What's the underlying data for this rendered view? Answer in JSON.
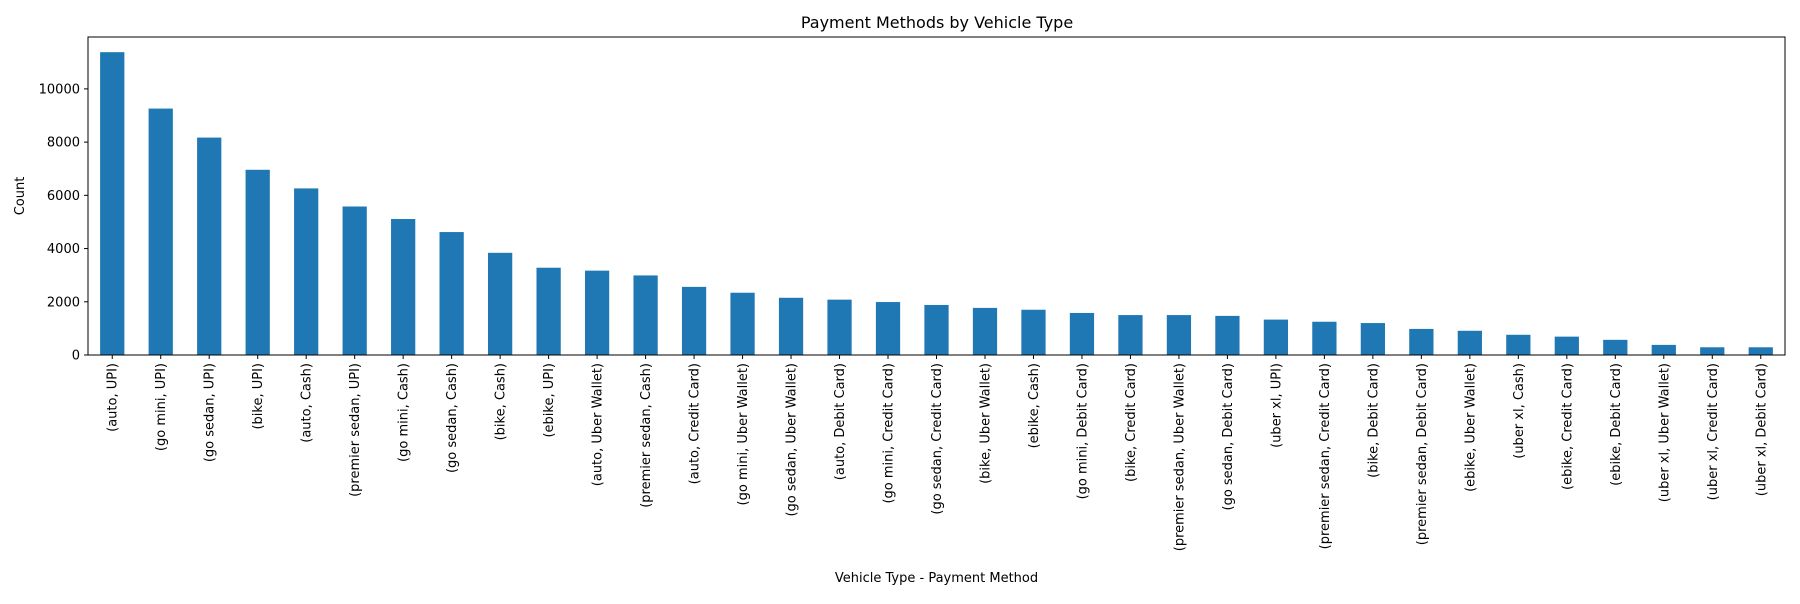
{
  "chart_data": {
    "type": "bar",
    "title": "Payment Methods by Vehicle Type",
    "xlabel": "Vehicle Type - Payment Method",
    "ylabel": "Count",
    "ylim": [
      0,
      11950
    ],
    "yticks": [
      0,
      2000,
      4000,
      6000,
      8000,
      10000
    ],
    "grid": false,
    "bar_color": "#1f77b4",
    "categories": [
      "(auto, UPI)",
      "(go mini, UPI)",
      "(go sedan, UPI)",
      "(bike, UPI)",
      "(auto, Cash)",
      "(premier sedan, UPI)",
      "(go mini, Cash)",
      "(go sedan, Cash)",
      "(bike, Cash)",
      "(ebike, UPI)",
      "(auto, Uber Wallet)",
      "(premier sedan, Cash)",
      "(auto, Credit Card)",
      "(go mini, Uber Wallet)",
      "(go sedan, Uber Wallet)",
      "(auto, Debit Card)",
      "(go mini, Credit Card)",
      "(go sedan, Credit Card)",
      "(bike, Uber Wallet)",
      "(ebike, Cash)",
      "(go mini, Debit Card)",
      "(bike, Credit Card)",
      "(premier sedan, Uber Wallet)",
      "(go sedan, Debit Card)",
      "(uber xl, UPI)",
      "(premier sedan, Credit Card)",
      "(bike, Debit Card)",
      "(premier sedan, Debit Card)",
      "(ebike, Uber Wallet)",
      "(uber xl, Cash)",
      "(ebike, Credit Card)",
      "(ebike, Debit Card)",
      "(uber xl, Uber Wallet)",
      "(uber xl, Credit Card)",
      "(uber xl, Debit Card)"
    ],
    "values": [
      11380,
      9260,
      8170,
      6960,
      6260,
      5580,
      5110,
      4620,
      3840,
      3280,
      3170,
      2990,
      2560,
      2340,
      2150,
      2080,
      1990,
      1880,
      1770,
      1700,
      1580,
      1500,
      1500,
      1470,
      1330,
      1250,
      1200,
      980,
      910,
      760,
      690,
      570,
      380,
      290,
      290
    ]
  }
}
